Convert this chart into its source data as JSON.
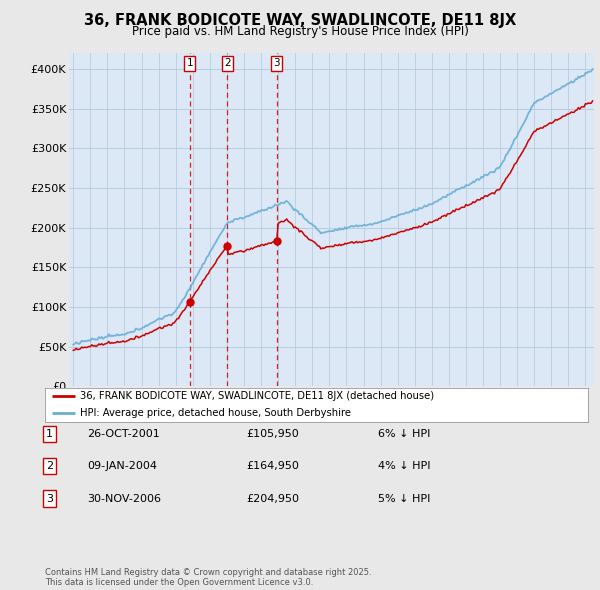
{
  "title_line1": "36, FRANK BODICOTE WAY, SWADLINCOTE, DE11 8JX",
  "title_line2": "Price paid vs. HM Land Registry's House Price Index (HPI)",
  "legend_label1": "36, FRANK BODICOTE WAY, SWADLINCOTE, DE11 8JX (detached house)",
  "legend_label2": "HPI: Average price, detached house, South Derbyshire",
  "purchases": [
    {
      "num": 1,
      "date": "26-OCT-2001",
      "price": 105950,
      "pct": "6%",
      "dir": "↓"
    },
    {
      "num": 2,
      "date": "09-JAN-2004",
      "price": 164950,
      "pct": "4%",
      "dir": "↓"
    },
    {
      "num": 3,
      "date": "30-NOV-2006",
      "price": 204950,
      "pct": "5%",
      "dir": "↓"
    }
  ],
  "purchase_dates_decimal": [
    2001.82,
    2004.03,
    2006.92
  ],
  "footer": "Contains HM Land Registry data © Crown copyright and database right 2025.\nThis data is licensed under the Open Government Licence v3.0.",
  "ylim": [
    0,
    420000
  ],
  "yticks": [
    0,
    50000,
    100000,
    150000,
    200000,
    250000,
    300000,
    350000,
    400000
  ],
  "ytick_labels": [
    "£0",
    "£50K",
    "£100K",
    "£150K",
    "£200K",
    "£250K",
    "£300K",
    "£350K",
    "£400K"
  ],
  "bg_color": "#e8e8e8",
  "plot_bg_color": "#dce8f5",
  "hpi_color": "#6aaed6",
  "price_color": "#cc0000",
  "vline_color": "#cc0000",
  "grid_color": "#b0c8dc"
}
